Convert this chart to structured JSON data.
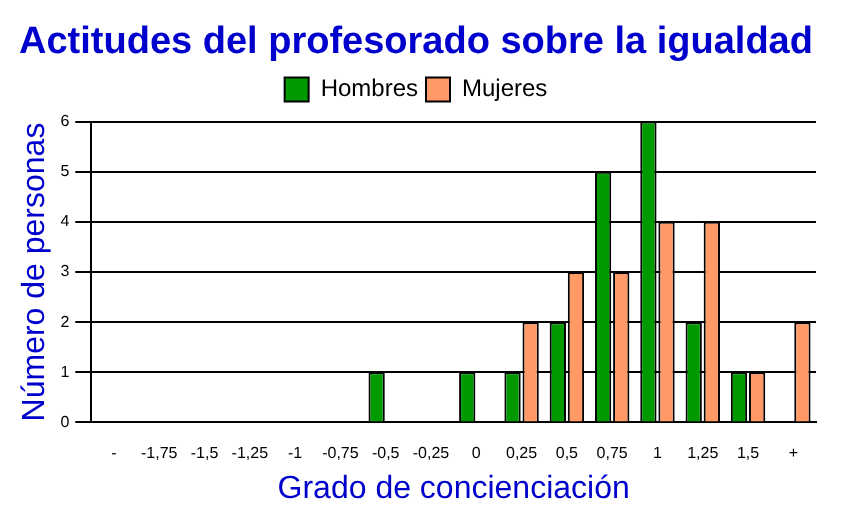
{
  "chart_data": {
    "type": "bar",
    "title": "Actitudes del profesorado sobre la igualdad",
    "xlabel": "Grado de concienciación",
    "ylabel": "Número de personas",
    "categories": [
      "-",
      "-1,75",
      "-1,5",
      "-1,25",
      "-1",
      "-0,75",
      "-0,5",
      "-0,25",
      "0",
      "0,25",
      "0,5",
      "0,75",
      "1",
      "1,25",
      "1,5",
      "+"
    ],
    "series": [
      {
        "name": "Hombres",
        "color": "#009900",
        "values": [
          0,
          0,
          0,
          0,
          0,
          0,
          1,
          0,
          1,
          1,
          2,
          5,
          6,
          2,
          1,
          0
        ]
      },
      {
        "name": "Mujeres",
        "color": "#ff9966",
        "values": [
          0,
          0,
          0,
          0,
          0,
          0,
          0,
          0,
          0,
          2,
          3,
          3,
          4,
          4,
          1,
          2
        ]
      }
    ],
    "ylim": [
      0,
      6
    ],
    "yticks": [
      0,
      1,
      2,
      3,
      4,
      5,
      6
    ],
    "grid": "y",
    "legend": "top"
  }
}
